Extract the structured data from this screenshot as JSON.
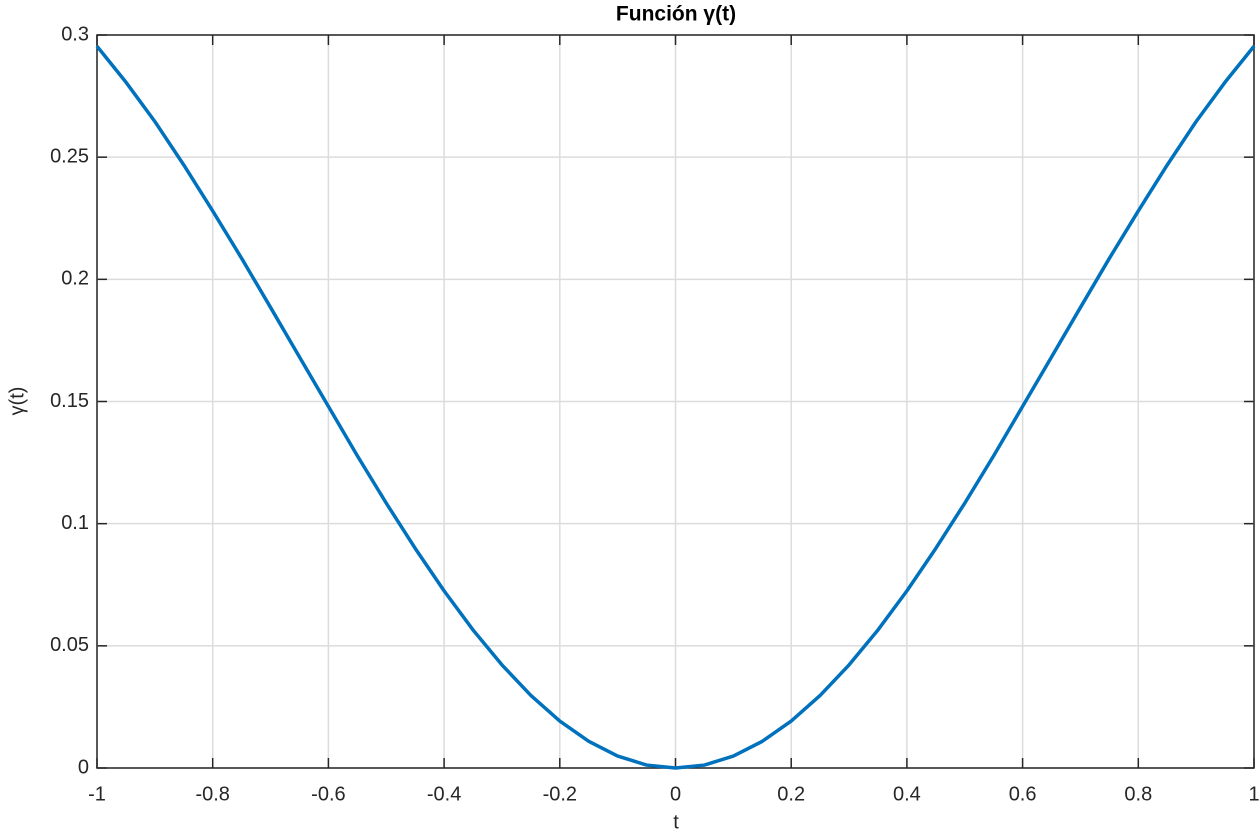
{
  "chart_data": {
    "type": "line",
    "title": "Función  γ(t)",
    "x_label": "t",
    "y_label": "γ(t)",
    "x": [
      -1,
      -0.95,
      -0.9,
      -0.85,
      -0.8,
      -0.75,
      -0.7,
      -0.65,
      -0.6,
      -0.55,
      -0.5,
      -0.45,
      -0.4,
      -0.35,
      -0.3,
      -0.25,
      -0.2,
      -0.15,
      -0.1,
      -0.05,
      0,
      0.05,
      0.1,
      0.15,
      0.2,
      0.25,
      0.3,
      0.35,
      0.4,
      0.45,
      0.5,
      0.55,
      0.6,
      0.65,
      0.7,
      0.75,
      0.8,
      0.85,
      0.9,
      0.95,
      1
    ],
    "series": [
      {
        "color": "#0072bd",
        "values": [
          0.2954,
          0.2807,
          0.2646,
          0.2468,
          0.228,
          0.2086,
          0.1885,
          0.1682,
          0.148,
          0.1278,
          0.1084,
          0.0899,
          0.0725,
          0.0565,
          0.0422,
          0.0297,
          0.0192,
          0.0109,
          0.0049,
          0.0012,
          0,
          0.0012,
          0.0049,
          0.0109,
          0.0192,
          0.0297,
          0.0422,
          0.0565,
          0.0725,
          0.0899,
          0.1084,
          0.1278,
          0.148,
          0.1682,
          0.1885,
          0.2086,
          0.228,
          0.2468,
          0.2646,
          0.2807,
          0.2954
        ]
      }
    ],
    "xlim": [
      -1,
      1
    ],
    "xticks": [
      -1,
      -0.8,
      -0.6,
      -0.4,
      -0.2,
      0,
      0.2,
      0.4,
      0.6,
      0.8,
      1
    ],
    "ylim": [
      0,
      0.3
    ],
    "yticks": [
      0,
      0.05,
      0.1,
      0.15,
      0.2,
      0.25,
      0.3
    ],
    "grid": true
  }
}
